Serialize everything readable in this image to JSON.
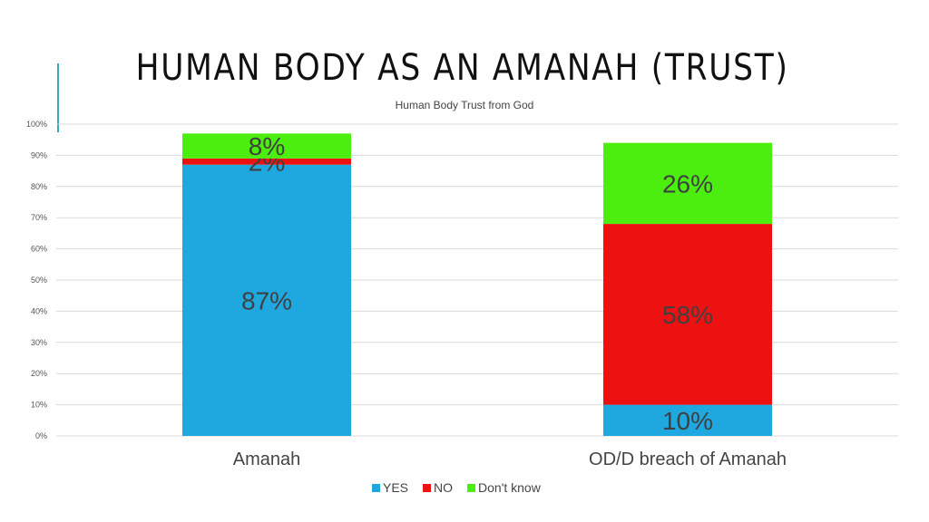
{
  "slide": {
    "title": "HUMAN BODY AS AN AMANAH (TRUST)"
  },
  "chart_data": {
    "type": "bar",
    "stacked": true,
    "title": "Human Body Trust from God",
    "categories": [
      "Amanah",
      "OD/D breach of Amanah"
    ],
    "series": [
      {
        "name": "YES",
        "color": "#1fa8e0",
        "values": [
          87,
          10
        ],
        "labels": [
          "87%",
          "10%"
        ]
      },
      {
        "name": "NO",
        "color": "#ee1111",
        "values": [
          2,
          58
        ],
        "labels": [
          "2%",
          "58%"
        ]
      },
      {
        "name": "Don't know",
        "color": "#4cee10",
        "values": [
          8,
          26
        ],
        "labels": [
          "8%",
          "26%"
        ]
      }
    ],
    "ylim": [
      0,
      100
    ],
    "yticks": [
      "0%",
      "10%",
      "20%",
      "30%",
      "40%",
      "50%",
      "60%",
      "70%",
      "80%",
      "90%",
      "100%"
    ],
    "grid": true,
    "legend": "bottom"
  }
}
